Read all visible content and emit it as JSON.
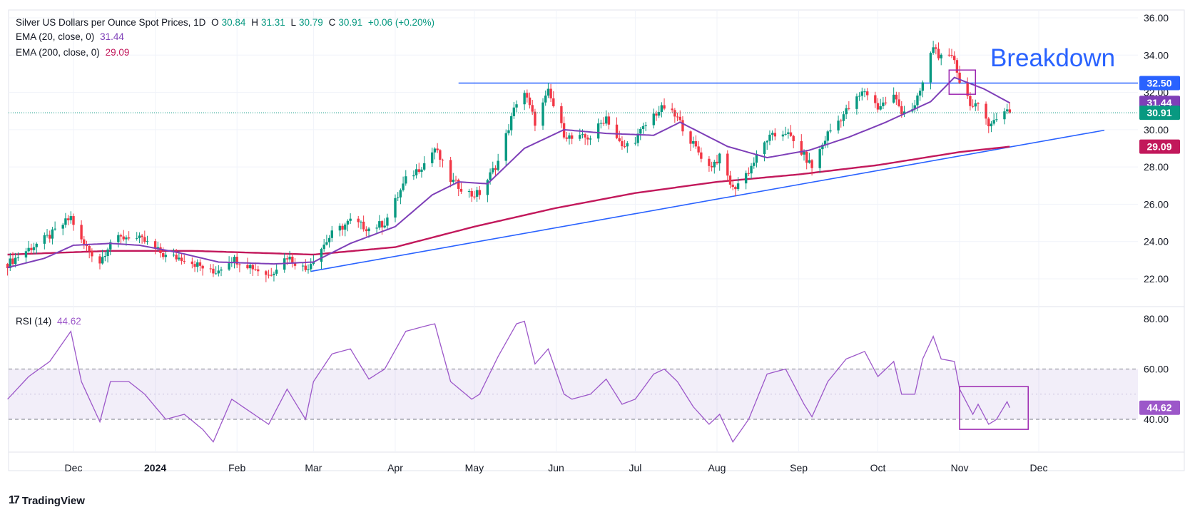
{
  "header": {
    "title": "Silver US Dollars per Ounce Spot Prices, 1D",
    "open_label": "O",
    "open": "30.84",
    "high_label": "H",
    "high": "31.31",
    "low_label": "L",
    "low": "30.79",
    "close_label": "C",
    "close": "30.91",
    "change": "+0.06 (+0.20%)"
  },
  "indicators": {
    "ema20_label": "EMA (20, close, 0)",
    "ema20_value": "31.44",
    "ema200_label": "EMA (200, close, 0)",
    "ema200_value": "29.09",
    "rsi_label": "RSI (14)",
    "rsi_value": "44.62"
  },
  "annotation": "Breakdown",
  "brand": "TradingView",
  "brand_logo": "17",
  "colors": {
    "up": "#089981",
    "down": "#f23645",
    "ema20": "#7e3fb8",
    "ema200": "#c2185b",
    "trendline": "#2962ff",
    "rsi": "#9c57c9",
    "box": "#9c27b0"
  },
  "chart_data": [
    {
      "type": "candlestick",
      "title": "Silver US Dollars per Ounce Spot Prices, 1D",
      "y_ticks": [
        22,
        24,
        26,
        28,
        30,
        32,
        34,
        36
      ],
      "y_tick_labels": [
        "22.00",
        "24.00",
        "26.00",
        "28.00",
        "30.00",
        "32.00",
        "34.00",
        "36.00"
      ],
      "ylim": [
        21.5,
        36.3
      ],
      "x_ticks": [
        {
          "label": "Dec",
          "date": "2023-12-01"
        },
        {
          "label": "2024",
          "date": "2024-01-01",
          "bold": true
        },
        {
          "label": "Feb",
          "date": "2024-02-01"
        },
        {
          "label": "Mar",
          "date": "2024-03-01"
        },
        {
          "label": "Apr",
          "date": "2024-04-01"
        },
        {
          "label": "May",
          "date": "2024-05-01"
        },
        {
          "label": "Jun",
          "date": "2024-06-01"
        },
        {
          "label": "Jul",
          "date": "2024-07-01"
        },
        {
          "label": "Aug",
          "date": "2024-08-01"
        },
        {
          "label": "Sep",
          "date": "2024-09-01"
        },
        {
          "label": "Oct",
          "date": "2024-10-01"
        },
        {
          "label": "Nov",
          "date": "2024-11-01"
        },
        {
          "label": "Dec",
          "date": "2024-12-01"
        }
      ],
      "price_anchors": [
        [
          "2023-11-06",
          22.8
        ],
        [
          "2023-11-14",
          23.6
        ],
        [
          "2023-11-22",
          24.3
        ],
        [
          "2023-11-30",
          25.3
        ],
        [
          "2023-12-04",
          24.0
        ],
        [
          "2023-12-11",
          22.9
        ],
        [
          "2023-12-15",
          24.0
        ],
        [
          "2023-12-22",
          24.3
        ],
        [
          "2023-12-28",
          24.0
        ],
        [
          "2024-01-05",
          23.2
        ],
        [
          "2024-01-12",
          23.1
        ],
        [
          "2024-01-19",
          22.6
        ],
        [
          "2024-01-23",
          22.3
        ],
        [
          "2024-01-30",
          23.1
        ],
        [
          "2024-02-06",
          22.7
        ],
        [
          "2024-02-13",
          22.2
        ],
        [
          "2024-02-20",
          23.2
        ],
        [
          "2024-02-27",
          22.5
        ],
        [
          "2024-03-01",
          23.1
        ],
        [
          "2024-03-08",
          24.4
        ],
        [
          "2024-03-15",
          25.1
        ],
        [
          "2024-03-22",
          24.7
        ],
        [
          "2024-03-28",
          25.0
        ],
        [
          "2024-04-05",
          27.3
        ],
        [
          "2024-04-12",
          28.2
        ],
        [
          "2024-04-16",
          29.0
        ],
        [
          "2024-04-22",
          27.3
        ],
        [
          "2024-04-30",
          26.5
        ],
        [
          "2024-05-03",
          26.6
        ],
        [
          "2024-05-10",
          28.3
        ],
        [
          "2024-05-17",
          31.5
        ],
        [
          "2024-05-20",
          32.0
        ],
        [
          "2024-05-24",
          30.4
        ],
        [
          "2024-05-29",
          32.0
        ],
        [
          "2024-06-04",
          29.8
        ],
        [
          "2024-06-07",
          29.5
        ],
        [
          "2024-06-14",
          29.6
        ],
        [
          "2024-06-20",
          30.7
        ],
        [
          "2024-06-26",
          29.0
        ],
        [
          "2024-07-01",
          29.5
        ],
        [
          "2024-07-08",
          30.8
        ],
        [
          "2024-07-12",
          31.2
        ],
        [
          "2024-07-17",
          30.6
        ],
        [
          "2024-07-23",
          29.2
        ],
        [
          "2024-07-29",
          28.0
        ],
        [
          "2024-08-02",
          28.5
        ],
        [
          "2024-08-07",
          26.8
        ],
        [
          "2024-08-13",
          27.8
        ],
        [
          "2024-08-20",
          29.5
        ],
        [
          "2024-08-27",
          29.9
        ],
        [
          "2024-09-03",
          28.6
        ],
        [
          "2024-09-06",
          28.0
        ],
        [
          "2024-09-12",
          29.8
        ],
        [
          "2024-09-19",
          31.0
        ],
        [
          "2024-09-26",
          32.1
        ],
        [
          "2024-10-01",
          31.2
        ],
        [
          "2024-10-07",
          31.8
        ],
        [
          "2024-10-10",
          31.0
        ],
        [
          "2024-10-15",
          31.2
        ],
        [
          "2024-10-18",
          32.5
        ],
        [
          "2024-10-22",
          34.5
        ],
        [
          "2024-10-25",
          33.8
        ],
        [
          "2024-10-30",
          33.8
        ],
        [
          "2024-11-01",
          32.6
        ],
        [
          "2024-11-06",
          31.2
        ],
        [
          "2024-11-08",
          31.2
        ],
        [
          "2024-11-12",
          30.4
        ],
        [
          "2024-11-15",
          30.5
        ],
        [
          "2024-11-19",
          31.2
        ],
        [
          "2024-11-20",
          30.91
        ]
      ],
      "ema20_anchors": [
        [
          "2023-11-06",
          22.6
        ],
        [
          "2023-11-20",
          23.1
        ],
        [
          "2023-12-01",
          23.8
        ],
        [
          "2023-12-15",
          23.9
        ],
        [
          "2023-12-26",
          23.8
        ],
        [
          "2024-01-10",
          23.4
        ],
        [
          "2024-01-25",
          22.9
        ],
        [
          "2024-02-15",
          22.8
        ],
        [
          "2024-03-01",
          22.9
        ],
        [
          "2024-03-15",
          23.9
        ],
        [
          "2024-04-01",
          24.8
        ],
        [
          "2024-04-15",
          26.5
        ],
        [
          "2024-04-25",
          27.2
        ],
        [
          "2024-05-06",
          27.1
        ],
        [
          "2024-05-20",
          29.0
        ],
        [
          "2024-06-04",
          30.0
        ],
        [
          "2024-06-20",
          29.8
        ],
        [
          "2024-07-08",
          29.7
        ],
        [
          "2024-07-18",
          30.4
        ],
        [
          "2024-08-05",
          29.1
        ],
        [
          "2024-08-20",
          28.5
        ],
        [
          "2024-09-05",
          28.9
        ],
        [
          "2024-09-20",
          29.6
        ],
        [
          "2024-10-04",
          30.4
        ],
        [
          "2024-10-21",
          31.5
        ],
        [
          "2024-10-30",
          32.8
        ],
        [
          "2024-11-10",
          32.2
        ],
        [
          "2024-11-20",
          31.44
        ]
      ],
      "ema200_anchors": [
        [
          "2023-11-06",
          23.3
        ],
        [
          "2023-12-15",
          23.5
        ],
        [
          "2024-01-15",
          23.5
        ],
        [
          "2024-03-01",
          23.3
        ],
        [
          "2024-04-01",
          23.7
        ],
        [
          "2024-05-01",
          24.8
        ],
        [
          "2024-06-01",
          25.8
        ],
        [
          "2024-07-01",
          26.6
        ],
        [
          "2024-08-01",
          27.2
        ],
        [
          "2024-09-01",
          27.6
        ],
        [
          "2024-10-01",
          28.1
        ],
        [
          "2024-11-01",
          28.8
        ],
        [
          "2024-11-20",
          29.09
        ]
      ],
      "horizontal_line": {
        "value": 32.5,
        "from": "2024-04-25",
        "to": "2024-12-31"
      },
      "trendline": {
        "from": [
          "2024-02-29",
          22.4
        ],
        "to": [
          "2024-12-31",
          30.1
        ]
      },
      "price_labels": [
        {
          "value": 32.5,
          "text": "32.50",
          "color": "#2962ff"
        },
        {
          "value": 31.44,
          "text": "31.44",
          "color": "#7e3fb8"
        },
        {
          "value": 30.91,
          "text": "30.91",
          "color": "#089981"
        },
        {
          "value": 29.09,
          "text": "29.09",
          "color": "#c2185b"
        }
      ],
      "box": {
        "from": "2024-10-28",
        "to": "2024-11-07",
        "low": 31.9,
        "high": 33.2
      }
    },
    {
      "type": "line",
      "title": "RSI (14)",
      "y_ticks": [
        40,
        60,
        80
      ],
      "y_tick_labels": [
        "40.00",
        "60.00",
        "80.00"
      ],
      "ylim": [
        30,
        82
      ],
      "band": [
        40,
        60
      ],
      "series": [
        {
          "name": "RSI (14)",
          "points": [
            [
              "2023-11-06",
              48
            ],
            [
              "2023-11-14",
              57
            ],
            [
              "2023-11-22",
              63
            ],
            [
              "2023-11-30",
              75
            ],
            [
              "2023-12-04",
              55
            ],
            [
              "2023-12-11",
              39
            ],
            [
              "2023-12-15",
              55
            ],
            [
              "2023-12-22",
              55
            ],
            [
              "2023-12-28",
              50
            ],
            [
              "2024-01-05",
              40
            ],
            [
              "2024-01-12",
              42
            ],
            [
              "2024-01-19",
              36
            ],
            [
              "2024-01-23",
              31
            ],
            [
              "2024-01-30",
              48
            ],
            [
              "2024-02-06",
              43
            ],
            [
              "2024-02-13",
              38
            ],
            [
              "2024-02-20",
              52
            ],
            [
              "2024-02-27",
              40
            ],
            [
              "2024-03-01",
              55
            ],
            [
              "2024-03-08",
              66
            ],
            [
              "2024-03-15",
              68
            ],
            [
              "2024-03-22",
              56
            ],
            [
              "2024-03-28",
              60
            ],
            [
              "2024-04-05",
              75
            ],
            [
              "2024-04-12",
              77
            ],
            [
              "2024-04-16",
              78
            ],
            [
              "2024-04-22",
              55
            ],
            [
              "2024-04-30",
              48
            ],
            [
              "2024-05-03",
              50
            ],
            [
              "2024-05-10",
              65
            ],
            [
              "2024-05-17",
              78
            ],
            [
              "2024-05-20",
              79
            ],
            [
              "2024-05-24",
              62
            ],
            [
              "2024-05-29",
              68
            ],
            [
              "2024-06-04",
              50
            ],
            [
              "2024-06-07",
              48
            ],
            [
              "2024-06-14",
              50
            ],
            [
              "2024-06-20",
              56
            ],
            [
              "2024-06-26",
              46
            ],
            [
              "2024-07-01",
              48
            ],
            [
              "2024-07-08",
              58
            ],
            [
              "2024-07-12",
              60
            ],
            [
              "2024-07-17",
              55
            ],
            [
              "2024-07-23",
              45
            ],
            [
              "2024-07-29",
              38
            ],
            [
              "2024-08-02",
              42
            ],
            [
              "2024-08-07",
              31
            ],
            [
              "2024-08-13",
              40
            ],
            [
              "2024-08-20",
              58
            ],
            [
              "2024-08-27",
              60
            ],
            [
              "2024-09-03",
              46
            ],
            [
              "2024-09-06",
              41
            ],
            [
              "2024-09-12",
              55
            ],
            [
              "2024-09-19",
              64
            ],
            [
              "2024-09-26",
              67
            ],
            [
              "2024-10-01",
              57
            ],
            [
              "2024-10-07",
              63
            ],
            [
              "2024-10-10",
              50
            ],
            [
              "2024-10-15",
              50
            ],
            [
              "2024-10-18",
              64
            ],
            [
              "2024-10-22",
              73
            ],
            [
              "2024-10-25",
              64
            ],
            [
              "2024-10-30",
              63
            ],
            [
              "2024-11-01",
              52
            ],
            [
              "2024-11-06",
              42
            ],
            [
              "2024-11-08",
              46
            ],
            [
              "2024-11-12",
              38
            ],
            [
              "2024-11-15",
              40
            ],
            [
              "2024-11-19",
              47
            ],
            [
              "2024-11-20",
              44.62
            ]
          ]
        }
      ],
      "value_label": {
        "value": 44.62,
        "text": "44.62"
      },
      "box": {
        "from": "2024-11-01",
        "to": "2024-11-27",
        "low": 36,
        "high": 53
      }
    }
  ]
}
